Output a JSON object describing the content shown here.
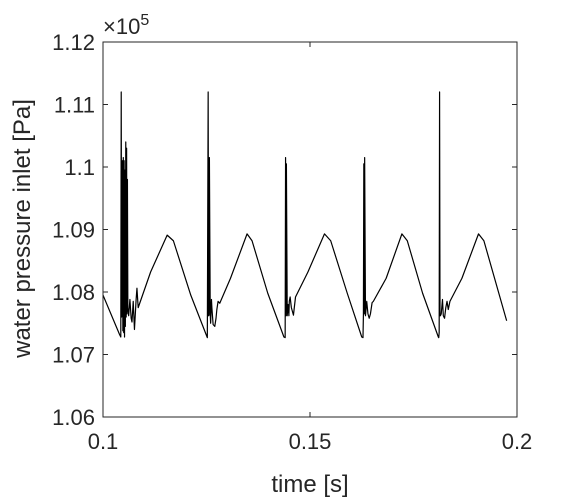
{
  "chart_data": {
    "type": "line",
    "title": "",
    "xlabel": "time [s]",
    "ylabel": "water pressure inlet [Pa]",
    "y_exponent_label": "×10",
    "y_exponent_power": "5",
    "y_scale_factor": 100000,
    "xlim": [
      0.1,
      0.2
    ],
    "ylim": [
      1.06,
      1.12
    ],
    "xticks": [
      0.1,
      0.15,
      0.2
    ],
    "xtick_labels": [
      "0.1",
      "0.15",
      "0.2"
    ],
    "yticks": [
      1.06,
      1.07,
      1.08,
      1.09,
      1.1,
      1.11,
      1.12
    ],
    "ytick_labels": [
      "1.06",
      "1.07",
      "1.08",
      "1.09",
      "1.1",
      "1.11",
      "1.12"
    ],
    "grid": false,
    "legend": "none",
    "line_color": "#000000",
    "series": [
      {
        "x": [
          0.1,
          0.104,
          0.1043,
          0.1044,
          0.1045,
          0.1047,
          0.1048,
          0.1049,
          0.105,
          0.1051,
          0.1052,
          0.1053,
          0.1054,
          0.1055,
          0.1056,
          0.1057,
          0.1058,
          0.1059,
          0.106,
          0.1062,
          0.1065,
          0.1068,
          0.107,
          0.1073,
          0.1076,
          0.108,
          0.1082,
          0.1085,
          0.1115,
          0.1155,
          0.117,
          0.1212,
          0.1252,
          0.1254,
          0.1255,
          0.1256,
          0.1257,
          0.1259,
          0.126,
          0.1262,
          0.1263,
          0.1266,
          0.127,
          0.1273,
          0.1275,
          0.1278,
          0.1282,
          0.1308,
          0.1348,
          0.136,
          0.1398,
          0.1437,
          0.144,
          0.1441,
          0.1442,
          0.1443,
          0.1445,
          0.1447,
          0.1449,
          0.145,
          0.1452,
          0.1455,
          0.146,
          0.1465,
          0.1495,
          0.1535,
          0.155,
          0.159,
          0.1625,
          0.1628,
          0.1629,
          0.163,
          0.1631,
          0.1632,
          0.1634,
          0.1637,
          0.164,
          0.1643,
          0.1646,
          0.165,
          0.1653,
          0.1684,
          0.1722,
          0.1735,
          0.1772,
          0.181,
          0.1811,
          0.1812,
          0.1813,
          0.1814,
          0.1815,
          0.1817,
          0.182,
          0.1822,
          0.1825,
          0.1828,
          0.1831,
          0.1834,
          0.1838,
          0.1867,
          0.1907,
          0.192,
          0.1975
        ],
        "y": [
          1.0795,
          1.0732,
          1.0728,
          1.112,
          1.076,
          1.101,
          1.0738,
          1.1015,
          1.0735,
          1.101,
          1.0728,
          1.0995,
          1.0745,
          1.104,
          1.076,
          1.103,
          1.0765,
          1.098,
          1.0775,
          1.0762,
          1.0788,
          1.0758,
          1.0752,
          1.0785,
          1.074,
          1.0788,
          1.0806,
          1.0775,
          1.0832,
          1.0891,
          1.0882,
          1.0795,
          1.0727,
          1.112,
          1.0762,
          1.0763,
          1.1015,
          1.0765,
          1.075,
          1.0788,
          1.0775,
          1.0748,
          1.0745,
          1.0758,
          1.0772,
          1.0785,
          1.0782,
          1.0822,
          1.0893,
          1.0882,
          1.0798,
          1.0728,
          1.0727,
          1.1015,
          1.0762,
          1.1005,
          1.0762,
          1.078,
          1.0762,
          1.0785,
          1.0792,
          1.0775,
          1.0763,
          1.0792,
          1.0832,
          1.0893,
          1.0882,
          1.0798,
          1.0728,
          1.0727,
          1.0764,
          1.1005,
          1.0765,
          1.1015,
          1.0762,
          1.0785,
          1.0765,
          1.0758,
          1.0765,
          1.0783,
          1.0785,
          1.0822,
          1.0893,
          1.0882,
          1.0798,
          1.0728,
          1.0727,
          1.0735,
          1.112,
          1.0762,
          1.0762,
          1.0765,
          1.0788,
          1.0762,
          1.0758,
          1.0775,
          1.0785,
          1.0772,
          1.0785,
          1.0822,
          1.0893,
          1.0882,
          1.0754
        ]
      }
    ]
  }
}
